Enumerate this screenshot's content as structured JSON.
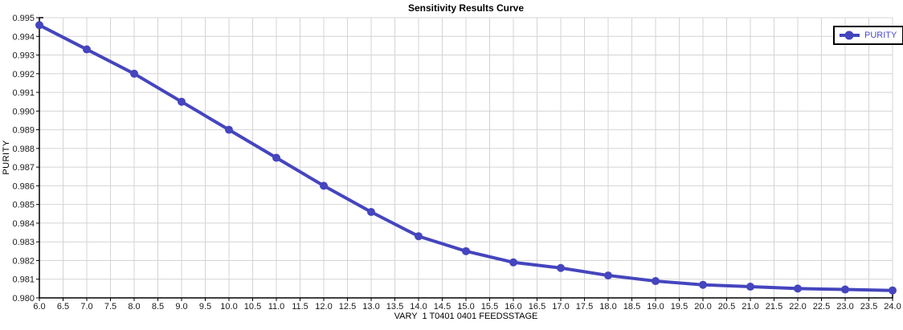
{
  "chart_data": {
    "type": "line",
    "title": "Sensitivity Results Curve",
    "xlabel": "VARY  1 T0401 0401 FEEDSSTAGE",
    "ylabel": "PURITY",
    "xlim": [
      6.0,
      24.0
    ],
    "ylim": [
      0.98,
      0.995
    ],
    "grid": true,
    "legend_position": "top-right",
    "x": [
      6,
      7,
      8,
      9,
      10,
      11,
      12,
      13,
      14,
      15,
      16,
      17,
      18,
      19,
      20,
      21,
      22,
      23,
      24
    ],
    "series": [
      {
        "name": "PURITY",
        "values": [
          0.9946,
          0.9933,
          0.992,
          0.9905,
          0.989,
          0.9875,
          0.986,
          0.9846,
          0.9833,
          0.9825,
          0.9819,
          0.9816,
          0.9812,
          0.9809,
          0.9807,
          0.9806,
          0.9805,
          0.98045,
          0.9804
        ]
      }
    ],
    "x_ticks": [
      "6.0",
      "6.5",
      "7.0",
      "7.5",
      "8.0",
      "8.5",
      "9.0",
      "9.5",
      "10.0",
      "10.5",
      "11.0",
      "11.5",
      "12.0",
      "12.5",
      "13.0",
      "13.5",
      "14.0",
      "14.5",
      "15.0",
      "15.5",
      "16.0",
      "16.5",
      "17.0",
      "17.5",
      "18.0",
      "18.5",
      "19.0",
      "19.5",
      "20.0",
      "20.5",
      "21.0",
      "21.5",
      "22.0",
      "22.5",
      "23.0",
      "23.5",
      "24.0"
    ],
    "y_ticks": [
      "0.980",
      "0.981",
      "0.982",
      "0.983",
      "0.984",
      "0.985",
      "0.986",
      "0.987",
      "0.988",
      "0.989",
      "0.990",
      "0.991",
      "0.992",
      "0.993",
      "0.994",
      "0.995"
    ]
  },
  "legend": {
    "items": [
      {
        "label": "PURITY"
      }
    ]
  },
  "colors": {
    "series": "#4545be",
    "legend_text": "#4a4ad0",
    "grid": "#d4d4d4",
    "axis": "#000000",
    "tick_label": "#1a1a1a",
    "background": "#ffffff"
  }
}
